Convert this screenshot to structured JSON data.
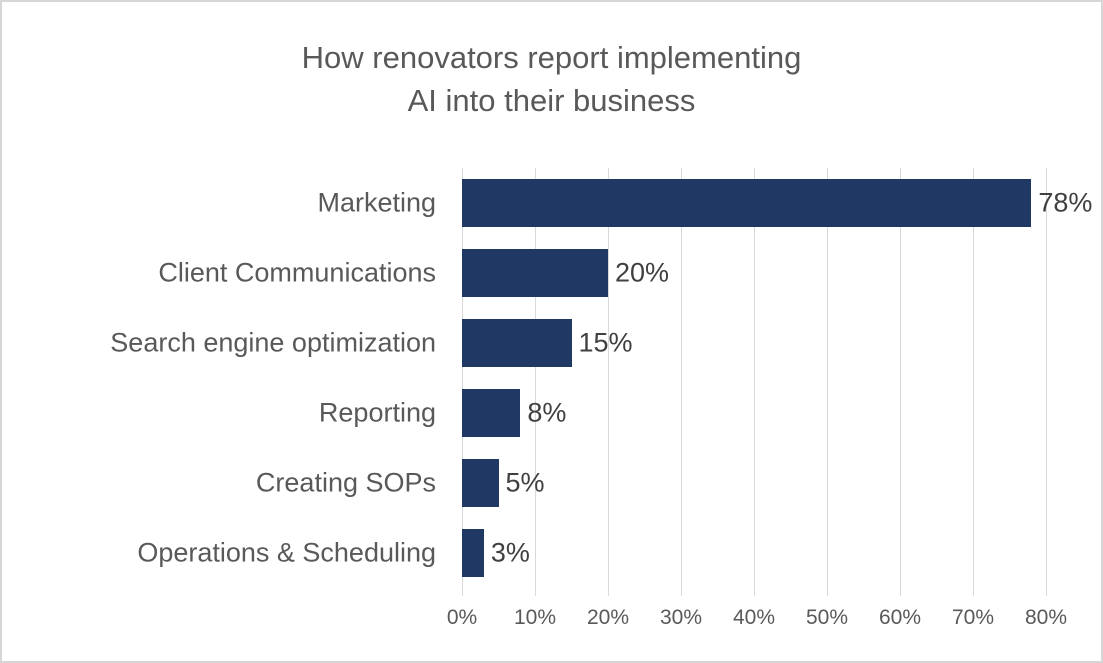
{
  "title": {
    "line1": "How renovators report implementing",
    "line2": "AI into their business"
  },
  "chart_data": {
    "type": "bar",
    "orientation": "horizontal",
    "title": "How renovators report implementing AI into their business",
    "categories": [
      "Marketing",
      "Client Communications",
      "Search engine optimization",
      "Reporting",
      "Creating SOPs",
      "Operations & Scheduling"
    ],
    "values": [
      78,
      20,
      15,
      8,
      5,
      3
    ],
    "data_labels": [
      "78%",
      "20%",
      "15%",
      "8%",
      "5%",
      "3%"
    ],
    "x_axis": {
      "min": 0,
      "max": 80,
      "step": 10,
      "tick_labels": [
        "0%",
        "10%",
        "20%",
        "30%",
        "40%",
        "50%",
        "60%",
        "70%",
        "80%"
      ]
    },
    "grid": true,
    "legend": false,
    "colors": {
      "bar": "#1f3864",
      "gridline": "#d9d9d9",
      "category_text": "#595959",
      "data_label_text": "#404040",
      "axis_text": "#595959",
      "title_text": "#595959",
      "border": "#d6d6d6",
      "background": "#ffffff"
    }
  }
}
